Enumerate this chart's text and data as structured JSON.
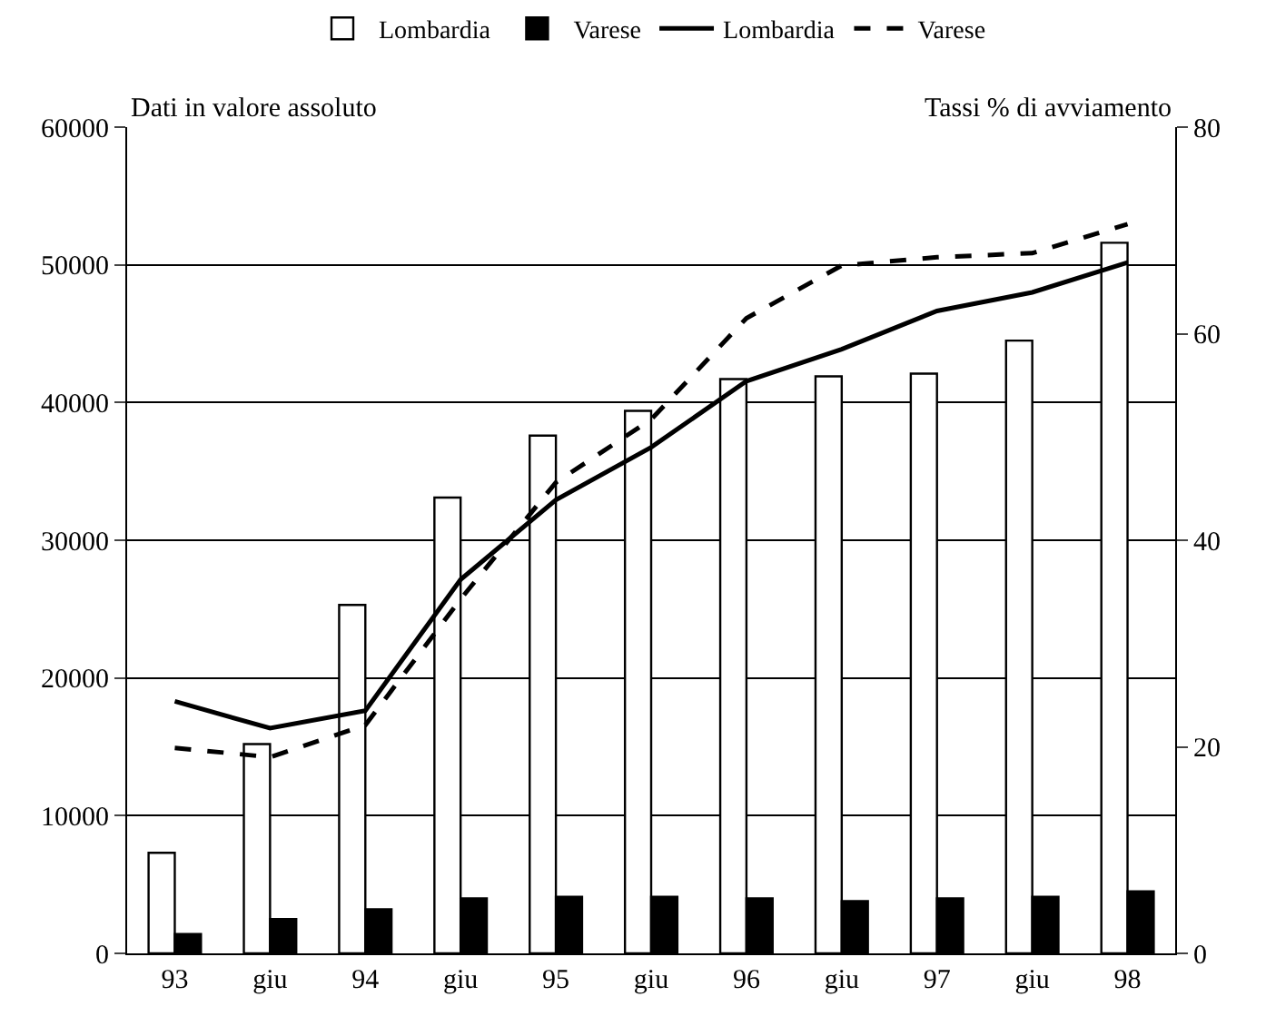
{
  "chart_data": {
    "type": "bar",
    "ylabel": "Dati in valore assoluto",
    "y2label": "Tassi % di avviamento",
    "categories": [
      "93",
      "giu",
      "94",
      "giu",
      "95",
      "giu",
      "96",
      "giu",
      "97",
      "giu",
      "98"
    ],
    "series": [
      {
        "name": "Lombardia",
        "color": "#ffffff",
        "values": [
          7300,
          15200,
          25300,
          33100,
          37600,
          39400,
          41700,
          41900,
          42100,
          44500,
          51600
        ]
      },
      {
        "name": "Varese",
        "color": "#000000",
        "values": [
          1400,
          2500,
          3200,
          4000,
          4100,
          4100,
          4000,
          3800,
          4000,
          4100,
          4500
        ]
      },
      {
        "name": "Lombardia",
        "type": "line",
        "axis": "y2",
        "color": "#000000",
        "line_style": "solid",
        "values": [
          24.4,
          21.8,
          23.5,
          36.2,
          43.9,
          49.0,
          55.4,
          58.5,
          62.2,
          64.0,
          66.9
        ]
      },
      {
        "name": "Varese",
        "type": "line",
        "axis": "y2",
        "color": "#000000",
        "line_style": "dashed",
        "values": [
          19.9,
          19.0,
          22.1,
          34.3,
          45.6,
          51.7,
          61.5,
          66.6,
          67.4,
          67.8,
          70.6
        ]
      }
    ],
    "ylim": [
      0,
      60000
    ],
    "yticks": [
      0,
      10000,
      20000,
      30000,
      40000,
      50000,
      60000
    ],
    "y2lim": [
      0,
      80
    ],
    "y2ticks": [
      0,
      20,
      40,
      60,
      80
    ],
    "grid": "y",
    "legend": "top",
    "marker": "none"
  }
}
